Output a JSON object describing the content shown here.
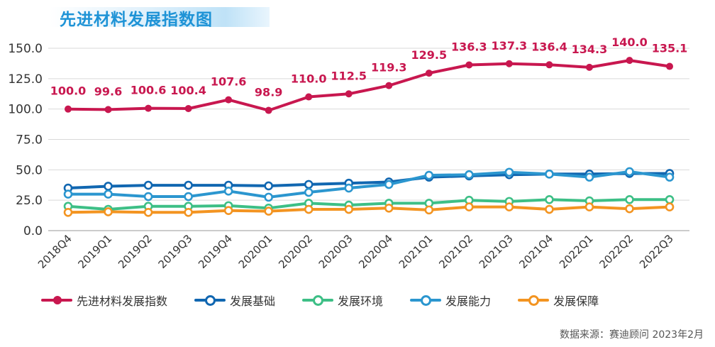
{
  "title": "先进材料发展指数图",
  "source": "数据来源：赛迪顾问 2023年2月",
  "chart_data": {
    "type": "line",
    "categories": [
      "2018Q4",
      "2019Q1",
      "2019Q2",
      "2019Q3",
      "2019Q4",
      "2020Q1",
      "2020Q2",
      "2020Q3",
      "2020Q4",
      "2021Q1",
      "2021Q2",
      "2021Q3",
      "2021Q4",
      "2022Q1",
      "2022Q2",
      "2022Q3"
    ],
    "ylim": [
      0,
      150
    ],
    "yticks": [
      "0.0",
      "25.0",
      "50.0",
      "75.0",
      "100.0",
      "125.0",
      "150.0"
    ],
    "grid": true,
    "legend_position": "bottom",
    "series": [
      {
        "name": "先进材料发展指数",
        "color": "#c8174f",
        "marker": "filled",
        "show_labels": true,
        "labels": [
          "100.0",
          "99.6",
          "100.6",
          "100.4",
          "107.6",
          "98.9",
          "110.0",
          "112.5",
          "119.3",
          "129.5",
          "136.3",
          "137.3",
          "136.4",
          "134.3",
          "140.0",
          "135.1"
        ],
        "values": [
          100.0,
          99.6,
          100.6,
          100.4,
          107.6,
          98.9,
          110.0,
          112.5,
          119.3,
          129.5,
          136.3,
          137.3,
          136.4,
          134.3,
          140.0,
          135.1
        ]
      },
      {
        "name": "发展基础",
        "color": "#1167b1",
        "marker": "hollow",
        "values": [
          35.0,
          36.5,
          37.3,
          37.3,
          37.3,
          36.8,
          38.0,
          39.0,
          40.0,
          44.0,
          45.0,
          46.0,
          46.5,
          46.5,
          47.0,
          47.0
        ]
      },
      {
        "name": "发展环境",
        "color": "#3dbf86",
        "marker": "hollow",
        "values": [
          20.0,
          17.5,
          20.0,
          20.0,
          20.5,
          18.5,
          22.5,
          21.0,
          22.5,
          22.5,
          25.0,
          24.0,
          25.5,
          24.5,
          25.5,
          25.5
        ]
      },
      {
        "name": "发展能力",
        "color": "#2b96cf",
        "marker": "hollow",
        "values": [
          30.0,
          30.0,
          28.0,
          28.0,
          32.5,
          27.5,
          31.5,
          35.0,
          38.0,
          45.5,
          46.0,
          48.0,
          46.5,
          44.0,
          48.5,
          44.0
        ]
      },
      {
        "name": "发展保障",
        "color": "#f39421",
        "marker": "hollow",
        "values": [
          15.0,
          15.5,
          15.0,
          15.0,
          16.5,
          16.0,
          17.5,
          17.5,
          18.5,
          17.0,
          19.5,
          19.5,
          17.5,
          19.5,
          18.0,
          19.5
        ]
      }
    ]
  }
}
